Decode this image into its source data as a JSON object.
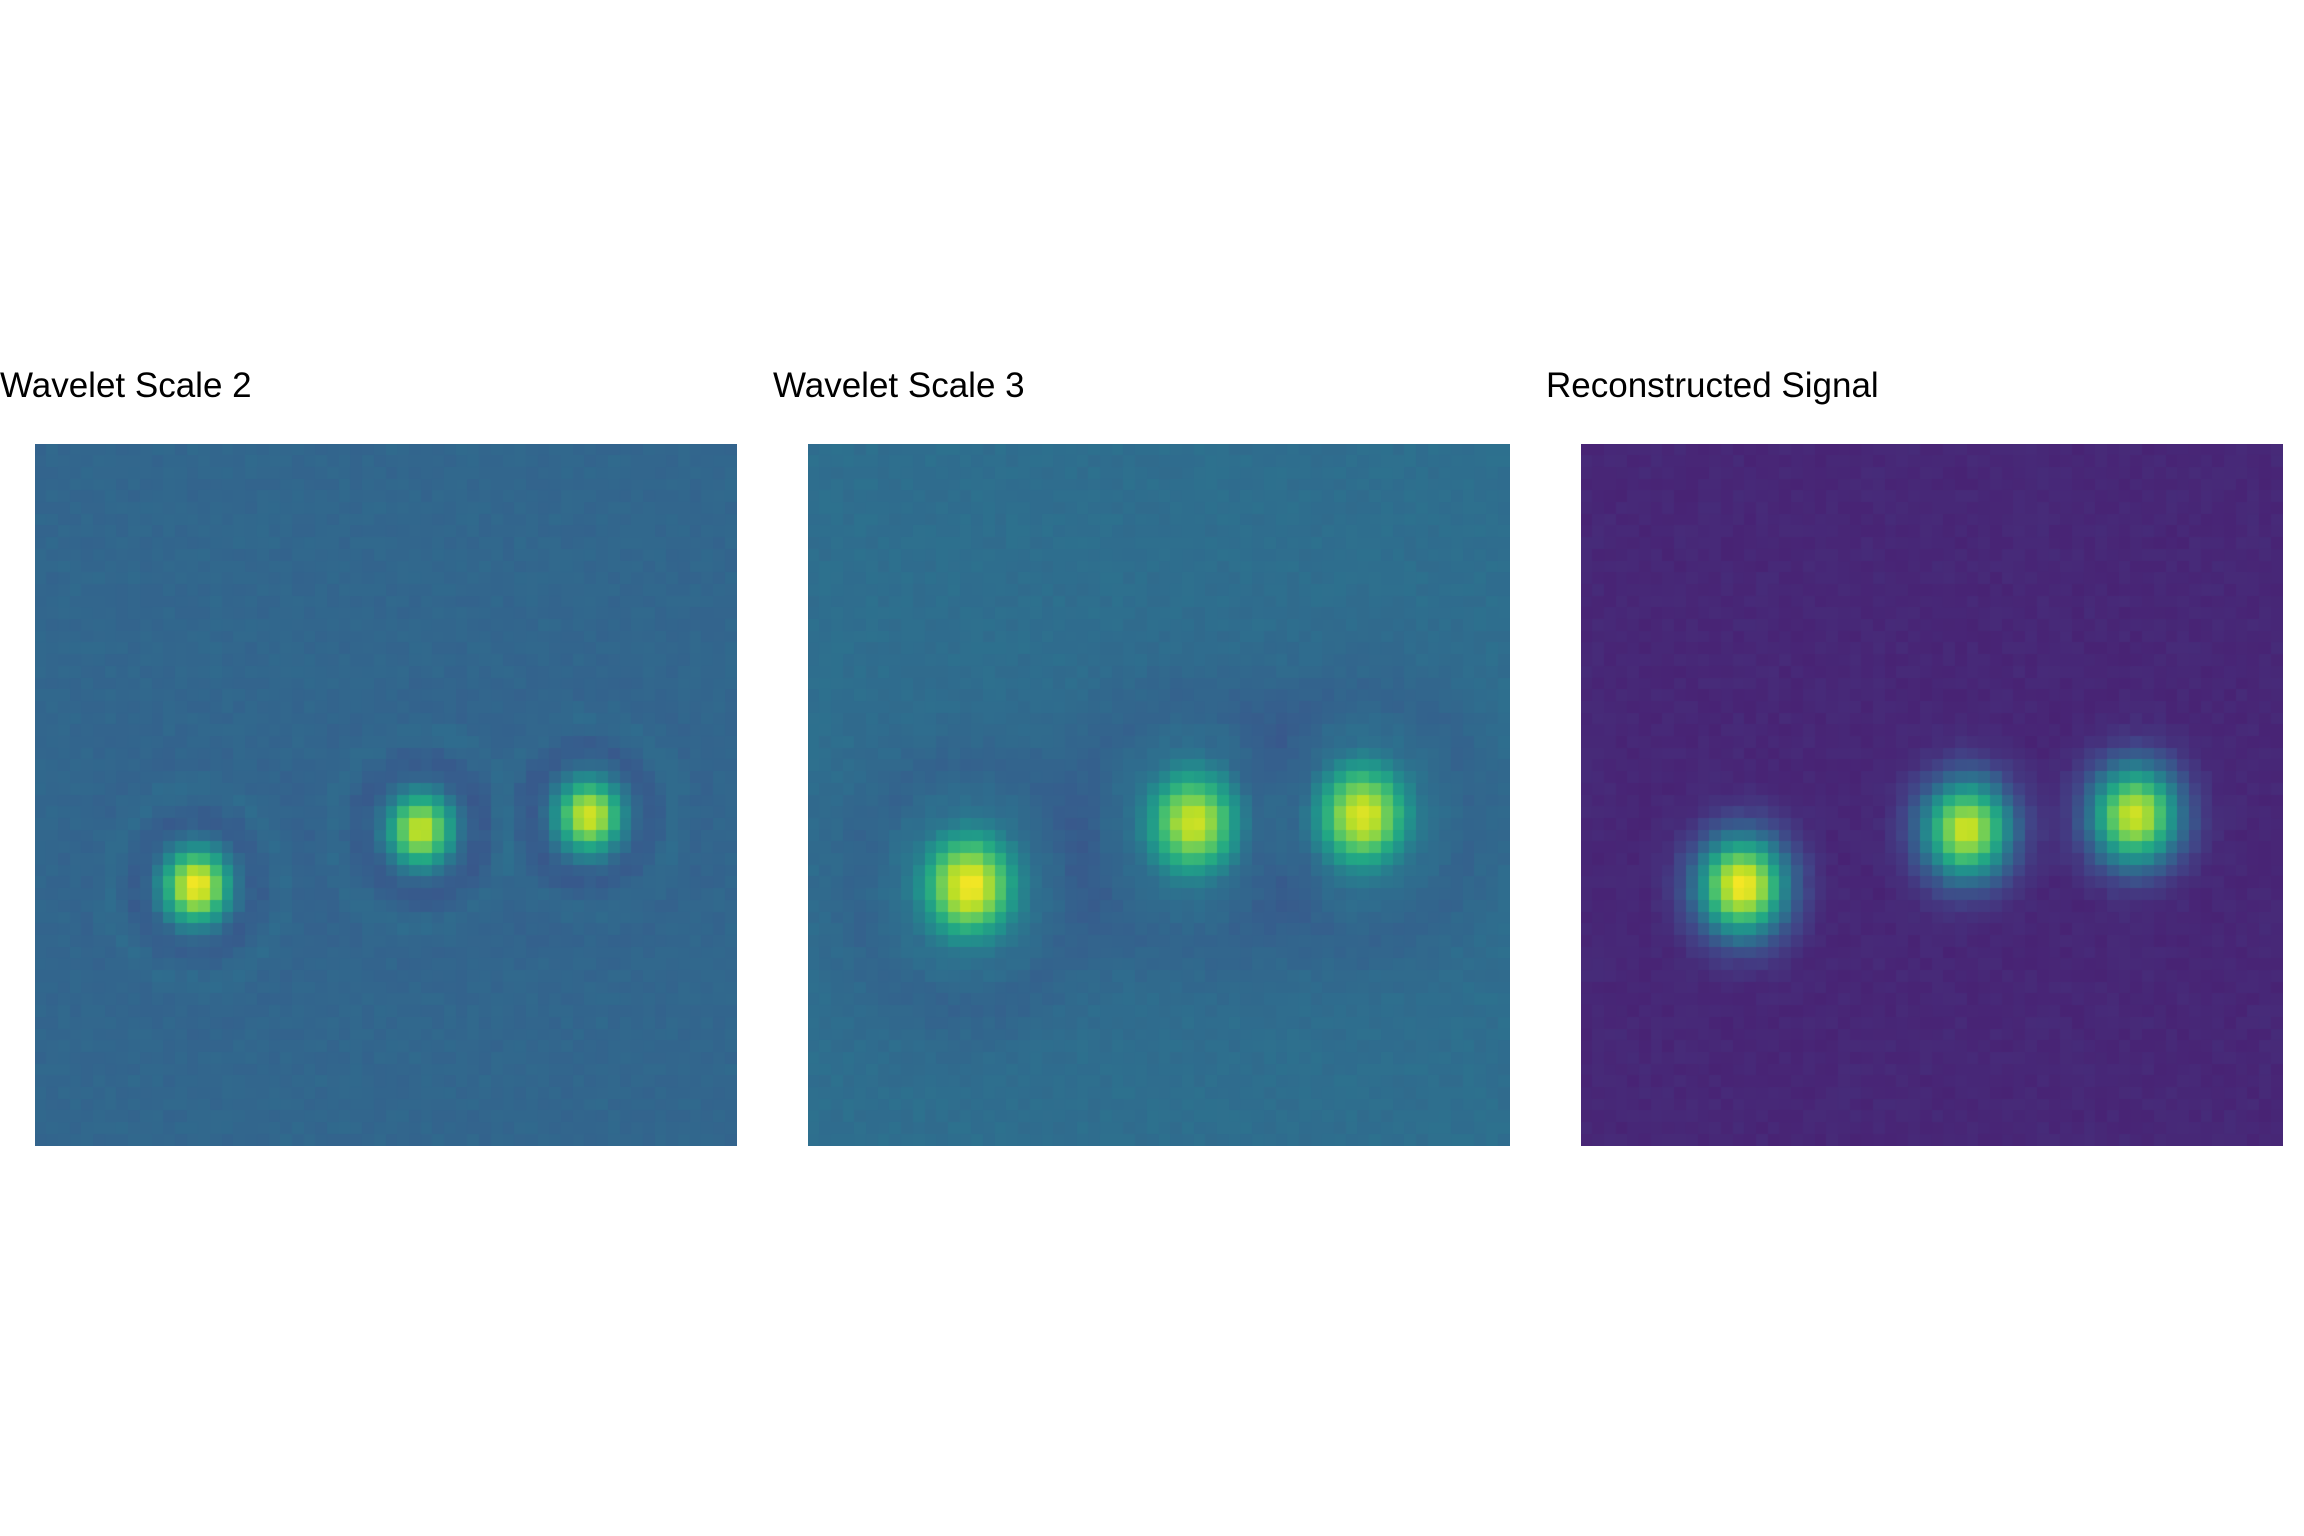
{
  "chart_data": [
    {
      "type": "heatmap",
      "title": "Wavelet Scale 2",
      "colormap": "viridis",
      "grid": false,
      "axes_visible": false,
      "sources": [
        {
          "x": 0.23,
          "y": 0.63,
          "amplitude": 1.0,
          "ring": 0.6
        },
        {
          "x": 0.55,
          "y": 0.55,
          "amplitude": 0.88,
          "ring": 0.6
        },
        {
          "x": 0.79,
          "y": 0.53,
          "amplitude": 0.92,
          "ring": 0.6
        }
      ],
      "background_level": 0.33,
      "core_sigma": 0.035,
      "ring_sigma": 0.07,
      "halo": 0.09,
      "grid_cells": 60
    },
    {
      "type": "heatmap",
      "title": "Wavelet Scale 3",
      "colormap": "viridis",
      "grid": false,
      "axes_visible": false,
      "sources": [
        {
          "x": 0.23,
          "y": 0.63,
          "amplitude": 1.0,
          "ring": 0.55
        },
        {
          "x": 0.55,
          "y": 0.54,
          "amplitude": 0.9,
          "ring": 0.55
        },
        {
          "x": 0.79,
          "y": 0.53,
          "amplitude": 0.94,
          "ring": 0.55
        }
      ],
      "background_level": 0.36,
      "core_sigma": 0.048,
      "ring_sigma": 0.095,
      "halo": 0.07,
      "grid_cells": 60
    },
    {
      "type": "heatmap",
      "title": "Reconstructed Signal",
      "colormap": "viridis",
      "grid": false,
      "axes_visible": false,
      "sources": [
        {
          "x": 0.23,
          "y": 0.63,
          "amplitude": 1.0,
          "ring": 0.2
        },
        {
          "x": 0.55,
          "y": 0.55,
          "amplitude": 0.92,
          "ring": 0.2
        },
        {
          "x": 0.79,
          "y": 0.53,
          "amplitude": 0.93,
          "ring": 0.2
        }
      ],
      "background_level": 0.11,
      "core_sigma": 0.045,
      "ring_sigma": 0.085,
      "halo": 0.0,
      "grid_cells": 60
    }
  ]
}
